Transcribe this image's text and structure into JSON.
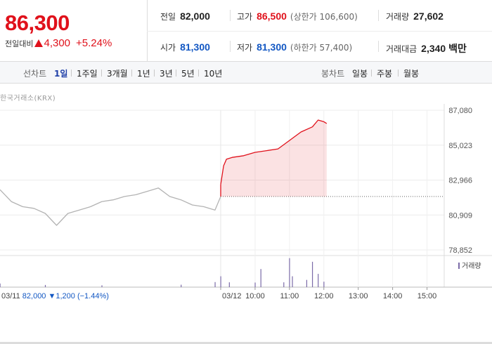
{
  "quote": {
    "price": "86,300",
    "change_label": "전일대비",
    "change_value": "4,300",
    "change_pct": "+5.24%",
    "colors": {
      "up": "#e0111b",
      "down": "#1257c3"
    }
  },
  "stats": {
    "prev_close": {
      "label": "전일",
      "value": "82,000"
    },
    "high": {
      "label": "고가",
      "value": "86,500",
      "sub": "(상한가 106,600)"
    },
    "volume": {
      "label": "거래량",
      "value": "27,602"
    },
    "open": {
      "label": "시가",
      "value": "81,300"
    },
    "low": {
      "label": "저가",
      "value": "81,300",
      "sub": "(하한가 57,400)"
    },
    "trade_value": {
      "label": "거래대금",
      "value": "2,340 백만"
    }
  },
  "toolbar": {
    "line_label": "선차트",
    "periods": [
      "1일",
      "1주일",
      "3개월",
      "1년",
      "3년",
      "5년",
      "10년"
    ],
    "active_period": "1일",
    "candle_label": "봉차트",
    "candles": [
      "일봉",
      "주봉",
      "월봉"
    ]
  },
  "chart_data": {
    "type": "line",
    "source": "한국거래소(KRX)",
    "y_ticks": [
      "87,080",
      "85,023",
      "82,966",
      "80,909",
      "78,852"
    ],
    "ylim": [
      78852,
      87080
    ],
    "x_ticks": [
      "03/12",
      "10:00",
      "11:00",
      "12:00",
      "13:00",
      "14:00",
      "15:00"
    ],
    "volume_legend": "거래량",
    "prev_day": {
      "date": "03/11",
      "close": "82,000",
      "change": "1,200",
      "change_pct": "(−1.44%)"
    },
    "reference_price": 82000,
    "series": [
      {
        "session": "03/11",
        "times": [
          "09:00",
          "09:20",
          "09:40",
          "10:00",
          "10:20",
          "10:40",
          "11:00",
          "11:20",
          "11:40",
          "12:00",
          "12:20",
          "12:40",
          "13:00",
          "13:20",
          "13:40",
          "14:00",
          "14:20",
          "14:40",
          "15:00",
          "15:20",
          "15:30"
        ],
        "values": [
          82400,
          81700,
          81400,
          81300,
          81000,
          80300,
          81000,
          81200,
          81400,
          81700,
          81800,
          82000,
          82100,
          82300,
          82500,
          82000,
          81800,
          81500,
          81400,
          81200,
          82000
        ]
      },
      {
        "session": "03/12",
        "times": [
          "09:00",
          "09:05",
          "09:10",
          "09:20",
          "09:40",
          "10:00",
          "10:20",
          "10:40",
          "11:00",
          "11:20",
          "11:40",
          "11:50",
          "12:00",
          "12:05"
        ],
        "values": [
          82700,
          83800,
          84200,
          84300,
          84400,
          84600,
          84700,
          84800,
          85300,
          85800,
          86100,
          86500,
          86400,
          86300
        ]
      }
    ],
    "volume": [
      {
        "session": "03/11",
        "times": [
          "09:00",
          "10:20",
          "12:00",
          "14:20",
          "15:20"
        ],
        "values": [
          300,
          180,
          150,
          200,
          420
        ]
      },
      {
        "session": "03/12",
        "times": [
          "09:00",
          "09:15",
          "10:00",
          "10:10",
          "10:50",
          "11:00",
          "11:05",
          "11:30",
          "11:40",
          "11:50",
          "12:00"
        ],
        "values": [
          900,
          400,
          380,
          1500,
          400,
          2400,
          900,
          600,
          2100,
          1100,
          450
        ]
      }
    ],
    "volume_max": 2500
  }
}
